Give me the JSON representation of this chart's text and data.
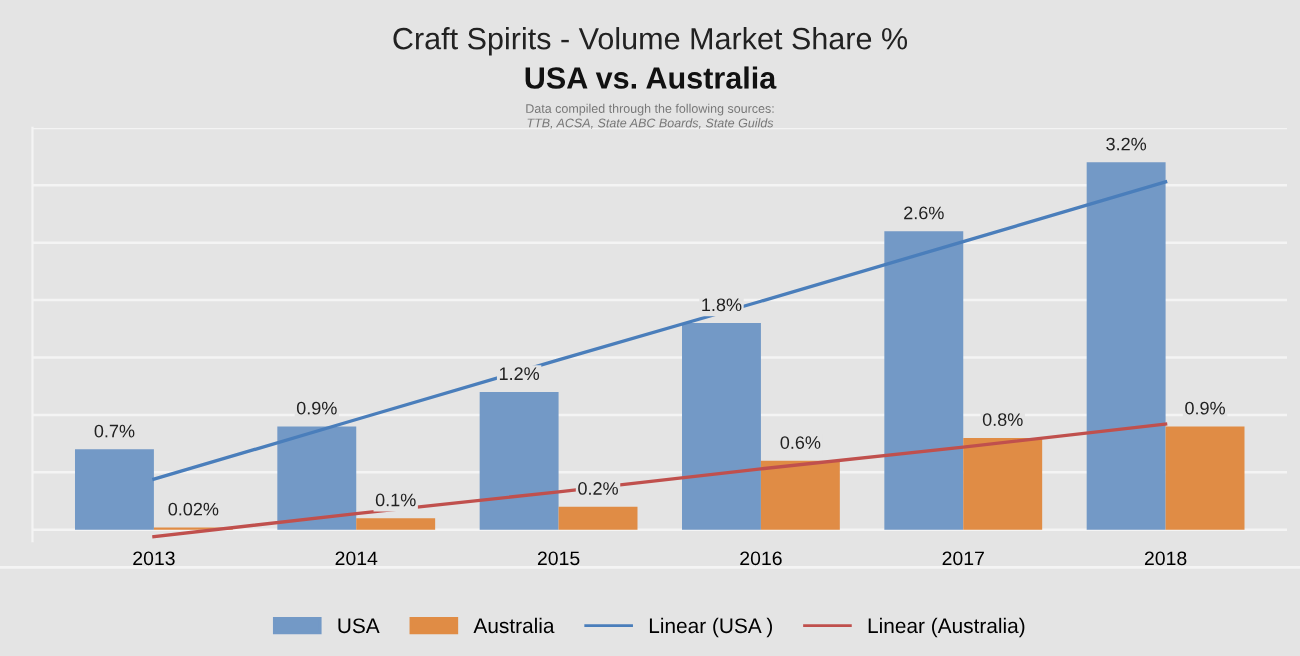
{
  "chart_data": {
    "type": "bar",
    "title": "Craft Spirits - Volume Market Share %",
    "subtitle": "USA vs. Australia",
    "annotations": [
      "Data compiled through the following sources:",
      "TTB, ACSA, State ABC Boards, State Guilds"
    ],
    "categories": [
      "2013",
      "2014",
      "2015",
      "2016",
      "2017",
      "2018"
    ],
    "series": [
      {
        "name": "USA",
        "color": "#7399c6",
        "values": [
          0.7,
          0.9,
          1.2,
          1.8,
          2.6,
          3.2
        ],
        "value_labels": [
          "0.7%",
          "0.9%",
          "1.2%",
          "1.8%",
          "2.6%",
          "3.2%"
        ]
      },
      {
        "name": "Australia",
        "color": "#e08c45",
        "values": [
          0.02,
          0.1,
          0.2,
          0.6,
          0.8,
          0.9
        ],
        "value_labels": [
          "0.02%",
          "0.1%",
          "0.2%",
          "0.6%",
          "0.8%",
          "0.9%"
        ]
      },
      {
        "name": "Linear (USA )",
        "type": "line",
        "color": "#4a7ebb",
        "values": [
          0.44,
          0.96,
          1.48,
          1.99,
          2.51,
          3.03
        ]
      },
      {
        "name": "Linear (Australia)",
        "type": "line",
        "color": "#c0504d",
        "values": [
          -0.06,
          0.14,
          0.33,
          0.53,
          0.72,
          0.92
        ]
      }
    ],
    "ylim": [
      -0.1,
      3.5
    ],
    "yticks": [
      {
        "value": 0,
        "label": null
      },
      {
        "value": 0.5,
        "label": null
      },
      {
        "value": 1,
        "label": null
      },
      {
        "value": 1.5,
        "label": null
      },
      {
        "value": 2,
        "label": null
      },
      {
        "value": 2.5,
        "label": null
      },
      {
        "value": 3,
        "label": null
      },
      {
        "value": 3.5,
        "label": null
      }
    ],
    "tick_labels": "x",
    "grid": "y",
    "legend": "bottom"
  }
}
